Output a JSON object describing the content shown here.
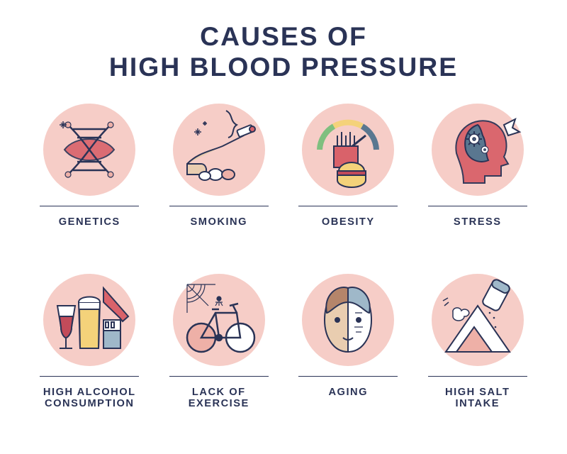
{
  "title": {
    "line1": "CAUSES OF",
    "line2": "HIGH BLOOD PRESSURE",
    "color": "#2a3356",
    "fontsize_pt": 28
  },
  "layout": {
    "rows": 2,
    "cols": 4,
    "icon_circle_color": "#f6cdc7",
    "rule_color": "#2a3356",
    "label_color": "#2a3356",
    "label_fontsize_pt": 11,
    "background_color": "#ffffff"
  },
  "palette": {
    "outline": "#2a3356",
    "pink_light": "#f6cdc7",
    "pink_mid": "#eeb0a7",
    "red": "#d9626a",
    "red_deep": "#c24b5a",
    "yellow": "#f4d27a",
    "green": "#7fbf7f",
    "blue_steel": "#5a7790",
    "blue_light": "#9fb8c9",
    "white": "#ffffff",
    "tan": "#e9cdb0",
    "grey": "#a8a8a8"
  },
  "items": [
    {
      "id": "genetics",
      "label": "GENETICS",
      "icon": "dna"
    },
    {
      "id": "smoking",
      "label": "SMOKING",
      "icon": "cigarette"
    },
    {
      "id": "obesity",
      "label": "OBESITY",
      "icon": "gauge-burger"
    },
    {
      "id": "stress",
      "label": "STRESS",
      "icon": "head-gears"
    },
    {
      "id": "high-alcohol-consumption",
      "label": "HIGH ALCOHOL\nCONSUMPTION",
      "icon": "drinks"
    },
    {
      "id": "lack-of-exercise",
      "label": "LACK OF\nEXERCISE",
      "icon": "bike-web"
    },
    {
      "id": "aging",
      "label": "AGING",
      "icon": "face-split"
    },
    {
      "id": "high-salt-intake",
      "label": "HIGH SALT\nINTAKE",
      "icon": "salt-shaker"
    }
  ]
}
